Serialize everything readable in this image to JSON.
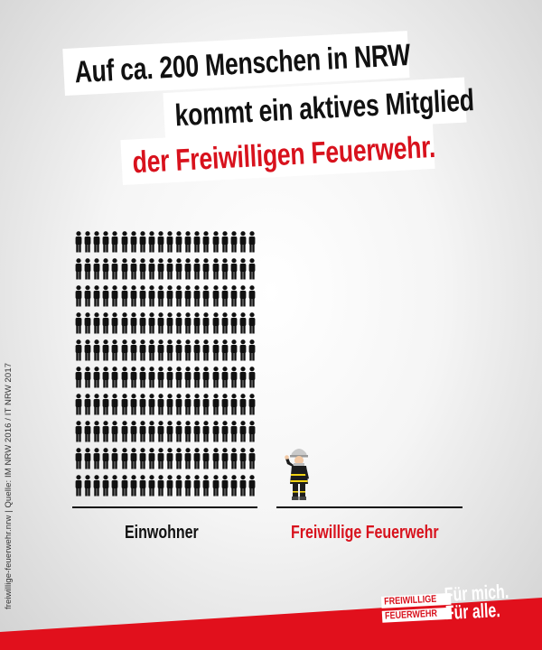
{
  "headline": {
    "line1": "Auf ca. 200 Menschen in NRW",
    "line2": "kommt ein aktives Mitglied",
    "line3": "der Freiwilligen Feuerwehr."
  },
  "infographic": {
    "residents_icon_count": 200,
    "residents_grid_rows": 10,
    "residents_grid_columns": 20,
    "firefighter_icon_count": 1,
    "label_residents": "Einwohner",
    "label_firefighters": "Freiwillige Feuerwehr"
  },
  "source": {
    "text": "freiwillige-feuerwehr.nrw | Quelle: IM NRW 2016 / IT NRW 2017"
  },
  "logo": {
    "wordmark_line1": "FREIWILLIGE",
    "wordmark_line2": "FEUERWEHR",
    "slogan_line1": "Für mich.",
    "slogan_line2": "Für alle."
  },
  "colors": {
    "accent_red": "#d8121d",
    "text_dark": "#111111",
    "band_red": "#e1101c",
    "background_light": "#f5f5f5"
  }
}
